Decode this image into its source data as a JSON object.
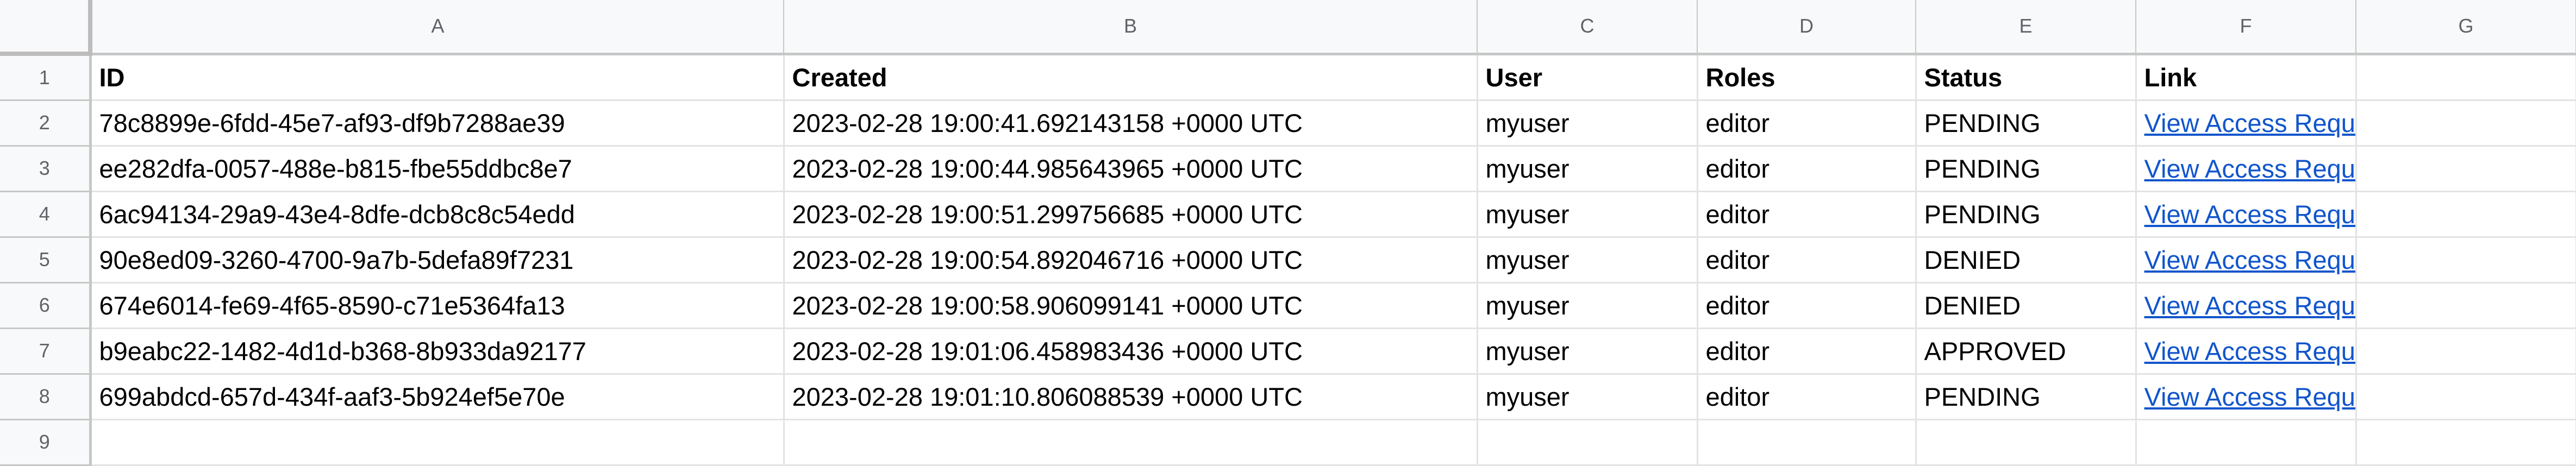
{
  "columns": [
    "A",
    "B",
    "C",
    "D",
    "E",
    "F",
    "G"
  ],
  "row_numbers": [
    "1",
    "2",
    "3",
    "4",
    "5",
    "6",
    "7",
    "8",
    "9"
  ],
  "headers": {
    "id": "ID",
    "created": "Created",
    "user": "User",
    "roles": "Roles",
    "status": "Status",
    "link": "Link"
  },
  "rows": [
    {
      "id": "78c8899e-6fdd-45e7-af93-df9b7288ae39",
      "created": "2023-02-28 19:00:41.692143158 +0000 UTC",
      "user": "myuser",
      "roles": "editor",
      "status": "PENDING",
      "link": "View Access Request"
    },
    {
      "id": "ee282dfa-0057-488e-b815-fbe55ddbc8e7",
      "created": "2023-02-28 19:00:44.985643965 +0000 UTC",
      "user": "myuser",
      "roles": "editor",
      "status": "PENDING",
      "link": "View Access Request"
    },
    {
      "id": "6ac94134-29a9-43e4-8dfe-dcb8c8c54edd",
      "created": "2023-02-28 19:00:51.299756685 +0000 UTC",
      "user": "myuser",
      "roles": "editor",
      "status": "PENDING",
      "link": "View Access Request"
    },
    {
      "id": "90e8ed09-3260-4700-9a7b-5defa89f7231",
      "created": "2023-02-28 19:00:54.892046716 +0000 UTC",
      "user": "myuser",
      "roles": "editor",
      "status": "DENIED",
      "link": "View Access Request"
    },
    {
      "id": "674e6014-fe69-4f65-8590-c71e5364fa13",
      "created": "2023-02-28 19:00:58.906099141 +0000 UTC",
      "user": "myuser",
      "roles": "editor",
      "status": "DENIED",
      "link": "View Access Request"
    },
    {
      "id": "b9eabc22-1482-4d1d-b368-8b933da92177",
      "created": "2023-02-28 19:01:06.458983436 +0000 UTC",
      "user": "myuser",
      "roles": "editor",
      "status": "APPROVED",
      "link": "View Access Request"
    },
    {
      "id": "699abdcd-657d-434f-aaf3-5b924ef5e70e",
      "created": "2023-02-28 19:01:10.806088539 +0000 UTC",
      "user": "myuser",
      "roles": "editor",
      "status": "PENDING",
      "link": "View Access Request"
    }
  ],
  "colors": {
    "link": "#1155cc",
    "header_bg": "#f8f9fa",
    "gridline": "#e2e3e3"
  }
}
